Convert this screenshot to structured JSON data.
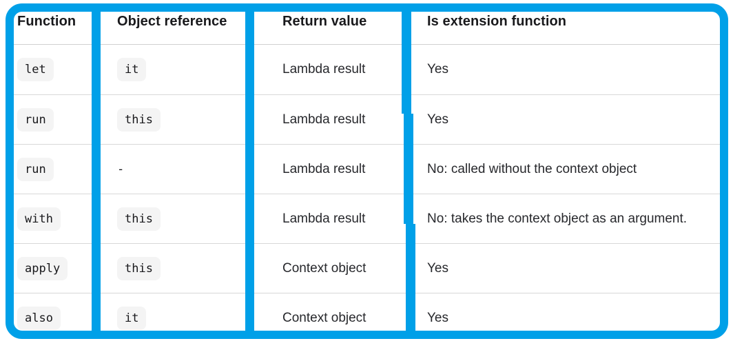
{
  "colors": {
    "accent": "#00a0e8",
    "row_divider": "#d8d8d8",
    "header_divider": "#d0d0d0",
    "chip_bg": "#f4f4f4",
    "header_text": "#19191c",
    "body_text": "#27282c",
    "code_text": "#19191c"
  },
  "table": {
    "headers": [
      {
        "label": "Function"
      },
      {
        "label": "Object reference"
      },
      {
        "label": "Return value"
      },
      {
        "label": "Is extension function"
      }
    ],
    "rows": [
      [
        {
          "text": "let",
          "style": "code"
        },
        {
          "text": "it",
          "style": "code"
        },
        {
          "text": "Lambda result",
          "style": "text"
        },
        {
          "text": "Yes",
          "style": "text"
        }
      ],
      [
        {
          "text": "run",
          "style": "code"
        },
        {
          "text": "this",
          "style": "code"
        },
        {
          "text": "Lambda result",
          "style": "text"
        },
        {
          "text": "Yes",
          "style": "text"
        }
      ],
      [
        {
          "text": "run",
          "style": "code"
        },
        {
          "text": "-",
          "style": "plain-code"
        },
        {
          "text": "Lambda result",
          "style": "text"
        },
        {
          "text": "No: called without the context object",
          "style": "text"
        }
      ],
      [
        {
          "text": "with",
          "style": "code"
        },
        {
          "text": "this",
          "style": "code"
        },
        {
          "text": "Lambda result",
          "style": "text"
        },
        {
          "text": "No: takes the context object as an argument.",
          "style": "text"
        }
      ],
      [
        {
          "text": "apply",
          "style": "code"
        },
        {
          "text": "this",
          "style": "code"
        },
        {
          "text": "Context object",
          "style": "text"
        },
        {
          "text": "Yes",
          "style": "text"
        }
      ],
      [
        {
          "text": "also",
          "style": "code"
        },
        {
          "text": "it",
          "style": "code"
        },
        {
          "text": "Context object",
          "style": "text"
        },
        {
          "text": "Yes",
          "style": "text"
        }
      ]
    ]
  }
}
